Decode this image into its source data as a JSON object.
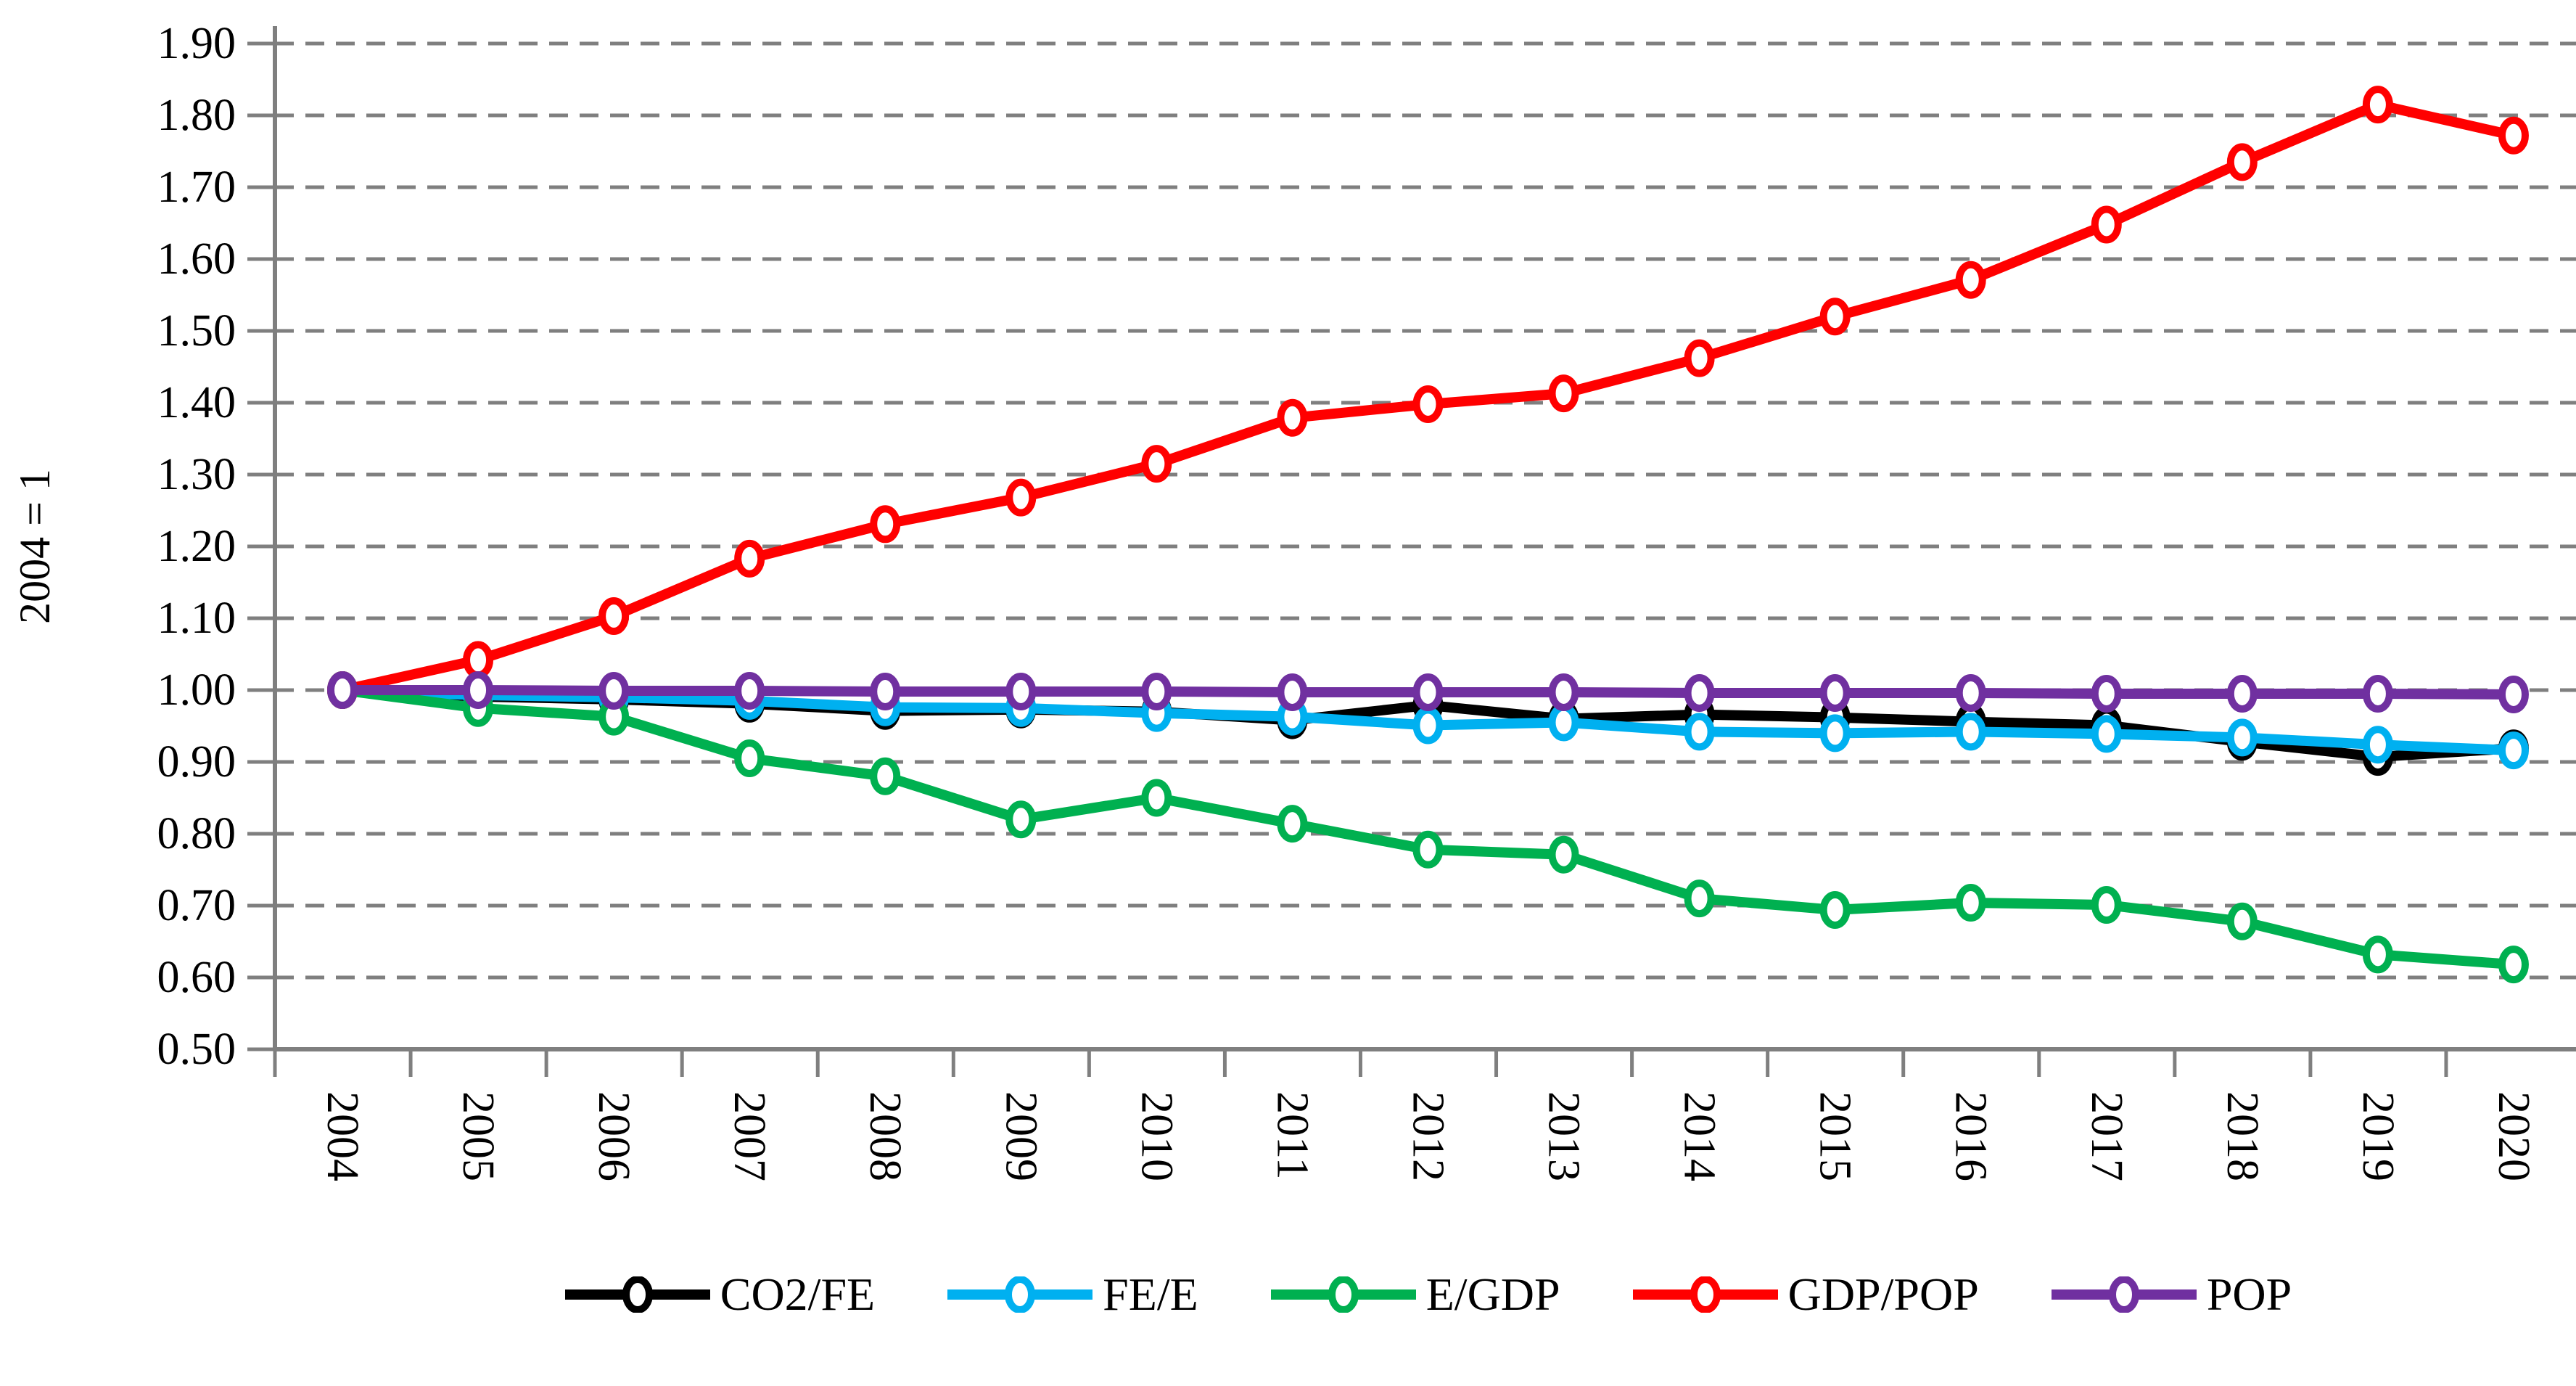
{
  "figure": {
    "background": "#FFFFFF",
    "text_color": "#000000"
  },
  "chart_data": {
    "type": "line",
    "title": "",
    "xlabel": "",
    "ylabel": "2004 = 1",
    "marker": "open-circle",
    "grid": "horizontal-dashed",
    "legend_position": "bottom",
    "axis_color": "#7F7F7F",
    "grid_color": "#7F7F7F",
    "ylim": [
      0.5,
      1.9
    ],
    "y_tick_labels": [
      "0.50",
      "0.60",
      "0.70",
      "0.80",
      "0.90",
      "1.00",
      "1.10",
      "1.20",
      "1.30",
      "1.40",
      "1.50",
      "1.60",
      "1.70",
      "1.80",
      "1.90"
    ],
    "categories": [
      "2004",
      "2005",
      "2006",
      "2007",
      "2008",
      "2009",
      "2010",
      "2011",
      "2012",
      "2013",
      "2014",
      "2015",
      "2016",
      "2017",
      "2018",
      "2019",
      "2020"
    ],
    "series": [
      {
        "name": "CO2/FE",
        "color": "#000000",
        "values": [
          1.0,
          0.991,
          0.987,
          0.981,
          0.971,
          0.973,
          0.97,
          0.958,
          0.979,
          0.96,
          0.966,
          0.962,
          0.956,
          0.951,
          0.928,
          0.907,
          0.919
        ]
      },
      {
        "name": "FE/E",
        "color": "#00B0F0",
        "values": [
          1.0,
          0.993,
          0.99,
          0.985,
          0.976,
          0.975,
          0.968,
          0.963,
          0.951,
          0.955,
          0.942,
          0.94,
          0.942,
          0.939,
          0.934,
          0.924,
          0.916
        ]
      },
      {
        "name": "E/GDP",
        "color": "#00B050",
        "values": [
          1.0,
          0.975,
          0.963,
          0.905,
          0.88,
          0.82,
          0.85,
          0.814,
          0.778,
          0.771,
          0.71,
          0.694,
          0.704,
          0.701,
          0.678,
          0.632,
          0.618
        ]
      },
      {
        "name": "GDP/POP",
        "color": "#FF0000",
        "values": [
          1.0,
          1.042,
          1.103,
          1.183,
          1.231,
          1.268,
          1.315,
          1.379,
          1.398,
          1.413,
          1.462,
          1.52,
          1.571,
          1.648,
          1.735,
          1.815,
          1.772
        ]
      },
      {
        "name": "POP",
        "color": "#7030A0",
        "values": [
          1.0,
          1.0,
          0.999,
          0.999,
          0.998,
          0.998,
          0.998,
          0.997,
          0.997,
          0.997,
          0.996,
          0.996,
          0.996,
          0.995,
          0.995,
          0.995,
          0.994
        ]
      }
    ]
  }
}
